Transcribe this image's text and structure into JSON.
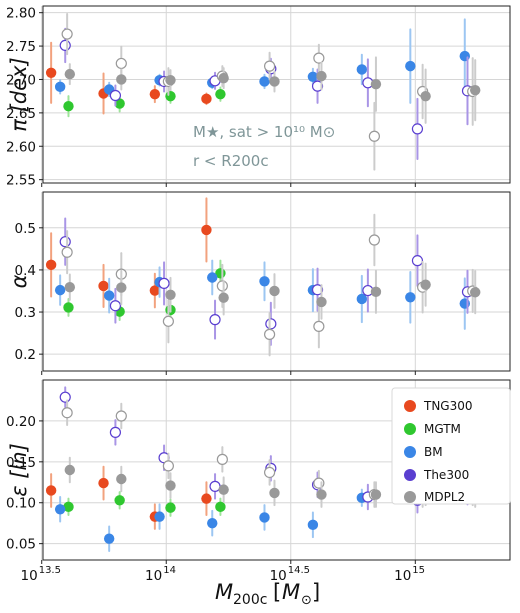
{
  "chart_data": {
    "type": "scatter",
    "x_scale": "log10",
    "xlim": [
      32000000000000.0,
      2400000000000000.0
    ],
    "xticks": [
      {
        "value": 31623000000000.0,
        "base": "10",
        "exp": "13.5"
      },
      {
        "value": 100000000000000.0,
        "base": "10",
        "exp": "14"
      },
      {
        "value": 316230000000000.0,
        "base": "10",
        "exp": "14.5"
      },
      {
        "value": 1000000000000000.0,
        "base": "10",
        "exp": "15"
      }
    ],
    "xlabel": {
      "main": "M",
      "sub": "200c",
      "unit": "M",
      "unit_sub": "⊙"
    },
    "grid": true,
    "colors": {
      "TNG300": "#e8491f",
      "MGTM": "#2fc72f",
      "BM": "#3a86e6",
      "The300": "#5a3fd0",
      "MDPL2": "#999999"
    },
    "error_colors": {
      "TNG300": "#f2a27e",
      "MGTM": "#9ee49a",
      "BM": "#9cc6f2",
      "The300": "#a995e6",
      "MDPL2": "#cccccc"
    },
    "legend": {
      "placement": "right of bottom panel",
      "entries": [
        "TNG300",
        "MGTM",
        "BM",
        "The300",
        "MDPL2"
      ]
    },
    "annotation": [
      "M★, sat > 10¹⁰ M⊙",
      "r < R200c"
    ],
    "panels": [
      {
        "ylabel": "π [dex]",
        "ylim": [
          2.545,
          2.81
        ],
        "yticks": [
          2.55,
          2.6,
          2.65,
          2.7,
          2.75,
          2.8
        ],
        "yticklabels": [
          "2.55",
          "2.60",
          "2.65",
          "2.70",
          "2.75",
          "2.80"
        ],
        "series": [
          {
            "name": "TNG300",
            "style": "filled",
            "points": [
              [
                34500000000000.0,
                2.71,
                0.045
              ],
              [
                56000000000000.0,
                2.679,
                0.03
              ],
              [
                90000000000000.0,
                2.678,
                0.012
              ],
              [
                145000000000000.0,
                2.671,
                0.008
              ]
            ]
          },
          {
            "name": "MGTM",
            "style": "filled",
            "points": [
              [
                40500000000000.0,
                2.66,
                0.015
              ],
              [
                65000000000000.0,
                2.664,
                0.012
              ],
              [
                104000000000000.0,
                2.675,
                0.01
              ],
              [
                165000000000000.0,
                2.678,
                0.01
              ]
            ]
          },
          {
            "name": "BM",
            "style": "filled",
            "points": [
              [
                37500000000000.0,
                2.689,
                0.01
              ],
              [
                59000000000000.0,
                2.685,
                0.01
              ],
              [
                94000000000000.0,
                2.699,
                0.008
              ],
              [
                153000000000000.0,
                2.695,
                0.008
              ],
              [
                248000000000000.0,
                2.697,
                0.01
              ],
              [
                388000000000000.0,
                2.704,
                0.012
              ],
              [
                610000000000000.0,
                2.715,
                0.022
              ],
              [
                955000000000000.0,
                2.72,
                0.055
              ],
              [
                1580000000000000.0,
                2.735,
                0.055
              ]
            ]
          },
          {
            "name": "The300",
            "style": "open",
            "points": [
              [
                39300000000000.0,
                2.751,
                0.025
              ],
              [
                62500000000000.0,
                2.676,
                0.015
              ],
              [
                98000000000000.0,
                2.697,
                0.015
              ],
              [
                157000000000000.0,
                2.698,
                0.012
              ],
              [
                263000000000000.0,
                2.716,
                0.015
              ],
              [
                405000000000000.0,
                2.69,
                0.025
              ],
              [
                645000000000000.0,
                2.695,
                0.035
              ],
              [
                1020000000000000.0,
                2.626,
                0.045
              ],
              [
                1620000000000000.0,
                2.683,
                0.05
              ]
            ]
          },
          {
            "name": "MDPL2",
            "style": "open",
            "points": [
              [
                40000000000000.0,
                2.768,
                0.03
              ],
              [
                66000000000000.0,
                2.724,
                0.025
              ],
              [
                102000000000000.0,
                2.697,
                0.02
              ],
              [
                168000000000000.0,
                2.705,
                0.015
              ],
              [
                260000000000000.0,
                2.72,
                0.02
              ],
              [
                410000000000000.0,
                2.732,
                0.02
              ],
              [
                685000000000000.0,
                2.615,
                0.05
              ],
              [
                1070000000000000.0,
                2.682,
                0.04
              ],
              [
                1700000000000000.0,
                2.682,
                0.05
              ]
            ]
          },
          {
            "name": "MDPL2",
            "style": "filled",
            "points": [
              [
                41000000000000.0,
                2.708,
                0.015
              ],
              [
                66000000000000.0,
                2.7,
                0.015
              ],
              [
                104000000000000.0,
                2.699,
                0.015
              ],
              [
                170000000000000.0,
                2.702,
                0.015
              ],
              [
                272000000000000.0,
                2.697,
                0.015
              ],
              [
                420000000000000.0,
                2.705,
                0.02
              ],
              [
                695000000000000.0,
                2.693,
                0.04
              ],
              [
                1100000000000000.0,
                2.675,
                0.04
              ],
              [
                1740000000000000.0,
                2.684,
                0.045
              ]
            ]
          }
        ]
      },
      {
        "ylabel": "α",
        "ylim": [
          0.16,
          0.585
        ],
        "yticks": [
          0.2,
          0.3,
          0.4,
          0.5
        ],
        "yticklabels": [
          "0.2",
          "0.3",
          "0.4",
          "0.5"
        ],
        "series": [
          {
            "name": "TNG300",
            "style": "filled",
            "points": [
              [
                34500000000000.0,
                0.412,
                0.075
              ],
              [
                56000000000000.0,
                0.362,
                0.05
              ],
              [
                90000000000000.0,
                0.351,
                0.04
              ],
              [
                145000000000000.0,
                0.495,
                0.075
              ]
            ]
          },
          {
            "name": "MGTM",
            "style": "filled",
            "points": [
              [
                40500000000000.0,
                0.311,
                0.02
              ],
              [
                65000000000000.0,
                0.301,
                0.02
              ],
              [
                104000000000000.0,
                0.305,
                0.02
              ],
              [
                165000000000000.0,
                0.392,
                0.03
              ]
            ]
          },
          {
            "name": "BM",
            "style": "filled",
            "points": [
              [
                37500000000000.0,
                0.352,
                0.035
              ],
              [
                59000000000000.0,
                0.339,
                0.04
              ],
              [
                94000000000000.0,
                0.371,
                0.035
              ],
              [
                153000000000000.0,
                0.382,
                0.04
              ],
              [
                248000000000000.0,
                0.373,
                0.045
              ],
              [
                388000000000000.0,
                0.352,
                0.05
              ],
              [
                610000000000000.0,
                0.331,
                0.055
              ],
              [
                955000000000000.0,
                0.335,
                0.06
              ],
              [
                1580000000000000.0,
                0.32,
                0.06
              ]
            ]
          },
          {
            "name": "The300",
            "style": "open",
            "points": [
              [
                39300000000000.0,
                0.467,
                0.055
              ],
              [
                62500000000000.0,
                0.315,
                0.04
              ],
              [
                98000000000000.0,
                0.368,
                0.05
              ],
              [
                157000000000000.0,
                0.282,
                0.045
              ],
              [
                263000000000000.0,
                0.272,
                0.05
              ],
              [
                405000000000000.0,
                0.353,
                0.05
              ],
              [
                645000000000000.0,
                0.351,
                0.05
              ],
              [
                1020000000000000.0,
                0.422,
                0.06
              ],
              [
                1620000000000000.0,
                0.348,
                0.05
              ]
            ]
          },
          {
            "name": "MDPL2",
            "style": "open",
            "points": [
              [
                40000000000000.0,
                0.442,
                0.05
              ],
              [
                66000000000000.0,
                0.39,
                0.05
              ],
              [
                102000000000000.0,
                0.278,
                0.05
              ],
              [
                168000000000000.0,
                0.362,
                0.05
              ],
              [
                260000000000000.0,
                0.247,
                0.05
              ],
              [
                410000000000000.0,
                0.266,
                0.05
              ],
              [
                685000000000000.0,
                0.471,
                0.06
              ],
              [
                1070000000000000.0,
                0.359,
                0.06
              ],
              [
                1700000000000000.0,
                0.35,
                0.05
              ]
            ]
          },
          {
            "name": "MDPL2",
            "style": "filled",
            "points": [
              [
                41000000000000.0,
                0.359,
                0.03
              ],
              [
                66000000000000.0,
                0.358,
                0.04
              ],
              [
                104000000000000.0,
                0.341,
                0.04
              ],
              [
                170000000000000.0,
                0.334,
                0.04
              ],
              [
                272000000000000.0,
                0.35,
                0.04
              ],
              [
                420000000000000.0,
                0.324,
                0.04
              ],
              [
                695000000000000.0,
                0.348,
                0.05
              ],
              [
                1100000000000000.0,
                0.365,
                0.05
              ],
              [
                1740000000000000.0,
                0.347,
                0.05
              ]
            ]
          }
        ]
      },
      {
        "ylabel": "ε [ln]",
        "ylim": [
          0.03,
          0.25
        ],
        "yticks": [
          0.05,
          0.1,
          0.15,
          0.2
        ],
        "yticklabels": [
          "0.05",
          "0.10",
          "0.15",
          "0.20"
        ],
        "series": [
          {
            "name": "TNG300",
            "style": "filled",
            "points": [
              [
                34500000000000.0,
                0.115,
                0.02
              ],
              [
                56000000000000.0,
                0.124,
                0.02
              ],
              [
                90000000000000.0,
                0.083,
                0.015
              ],
              [
                145000000000000.0,
                0.105,
                0.02
              ]
            ]
          },
          {
            "name": "MGTM",
            "style": "filled",
            "points": [
              [
                40500000000000.0,
                0.095,
                0.01
              ],
              [
                65000000000000.0,
                0.103,
                0.01
              ],
              [
                104000000000000.0,
                0.094,
                0.01
              ],
              [
                165000000000000.0,
                0.095,
                0.01
              ]
            ]
          },
          {
            "name": "BM",
            "style": "filled",
            "points": [
              [
                37500000000000.0,
                0.092,
                0.015
              ],
              [
                59000000000000.0,
                0.056,
                0.015
              ],
              [
                94000000000000.0,
                0.083,
                0.015
              ],
              [
                153000000000000.0,
                0.075,
                0.015
              ],
              [
                248000000000000.0,
                0.082,
                0.015
              ],
              [
                388000000000000.0,
                0.073,
                0.015
              ],
              [
                610000000000000.0,
                0.106,
                0.01
              ],
              [
                955000000000000.0,
                0.113,
                0.01
              ],
              [
                1580000000000000.0,
                0.116,
                0.01
              ]
            ]
          },
          {
            "name": "The300",
            "style": "open",
            "points": [
              [
                39300000000000.0,
                0.229,
                0.012
              ],
              [
                62500000000000.0,
                0.186,
                0.015
              ],
              [
                98000000000000.0,
                0.155,
                0.015
              ],
              [
                157000000000000.0,
                0.12,
                0.015
              ],
              [
                263000000000000.0,
                0.142,
                0.015
              ],
              [
                405000000000000.0,
                0.122,
                0.015
              ],
              [
                645000000000000.0,
                0.107,
                0.015
              ],
              [
                1020000000000000.0,
                0.103,
                0.015
              ],
              [
                1620000000000000.0,
                0.113,
                0.015
              ]
            ]
          },
          {
            "name": "MDPL2",
            "style": "open",
            "points": [
              [
                40000000000000.0,
                0.21,
                0.015
              ],
              [
                66000000000000.0,
                0.206,
                0.015
              ],
              [
                102000000000000.0,
                0.145,
                0.015
              ],
              [
                168000000000000.0,
                0.153,
                0.015
              ],
              [
                260000000000000.0,
                0.137,
                0.015
              ],
              [
                410000000000000.0,
                0.124,
                0.015
              ],
              [
                685000000000000.0,
                0.11,
                0.015
              ],
              [
                1070000000000000.0,
                0.11,
                0.015
              ],
              [
                1700000000000000.0,
                0.112,
                0.015
              ]
            ]
          },
          {
            "name": "MDPL2",
            "style": "filled",
            "points": [
              [
                41000000000000.0,
                0.14,
                0.015
              ],
              [
                66000000000000.0,
                0.129,
                0.015
              ],
              [
                104000000000000.0,
                0.121,
                0.015
              ],
              [
                170000000000000.0,
                0.116,
                0.015
              ],
              [
                272000000000000.0,
                0.112,
                0.015
              ],
              [
                420000000000000.0,
                0.11,
                0.015
              ],
              [
                695000000000000.0,
                0.11,
                0.015
              ],
              [
                1100000000000000.0,
                0.112,
                0.015
              ],
              [
                1740000000000000.0,
                0.11,
                0.015
              ]
            ]
          }
        ]
      }
    ]
  }
}
